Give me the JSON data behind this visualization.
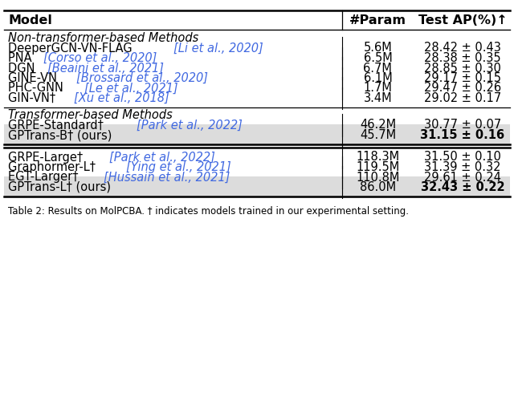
{
  "title_caption": "Table 2: Results on MolPCBA. † indicates models trained in our experimental setting.",
  "section1_title": "Non-transformer-based Methods",
  "section2_title": "Transformer-based Methods",
  "rows": [
    {
      "group": 1,
      "model_plain": "DeeperGCN-VN-FLAG",
      "model_cite": "Li et al., 2020",
      "ours": false,
      "param": "5.6M",
      "ap": "28.42 ± 0.43",
      "bold": false,
      "shaded": false
    },
    {
      "group": 1,
      "model_plain": "PNA",
      "model_cite": "Corso et al., 2020",
      "ours": false,
      "param": "6.5M",
      "ap": "28.38 ± 0.35",
      "bold": false,
      "shaded": false
    },
    {
      "group": 1,
      "model_plain": "DGN",
      "model_cite": "Beaini et al., 2021",
      "ours": false,
      "param": "6.7M",
      "ap": "28.85 ± 0.30",
      "bold": false,
      "shaded": false
    },
    {
      "group": 1,
      "model_plain": "GINE-VN",
      "model_cite": "Brossard et al., 2020",
      "ours": false,
      "param": "6.1M",
      "ap": "29.17 ± 0.15",
      "bold": false,
      "shaded": false
    },
    {
      "group": 1,
      "model_plain": "PHC-GNN",
      "model_cite": "Le et al., 2021",
      "ours": false,
      "param": "1.7M",
      "ap": "29.47 ± 0.26",
      "bold": false,
      "shaded": false
    },
    {
      "group": 1,
      "model_plain": "GIN-VN†",
      "model_cite": "Xu et al., 2018",
      "ours": false,
      "param": "3.4M",
      "ap": "29.02 ± 0.17",
      "bold": false,
      "shaded": false
    },
    {
      "group": 2,
      "model_plain": "GRPE-Standard†",
      "model_cite": "Park et al., 2022",
      "ours": false,
      "param": "46.2M",
      "ap": "30.77 ± 0.07",
      "bold": false,
      "shaded": false
    },
    {
      "group": 2,
      "model_plain": "GPTrans-B† (ours)",
      "model_cite": "",
      "ours": true,
      "param": "45.7M",
      "ap": "31.15 ± 0.16",
      "bold": true,
      "shaded": true
    },
    {
      "group": 3,
      "model_plain": "GRPE-Large†",
      "model_cite": "Park et al., 2022",
      "ours": false,
      "param": "118.3M",
      "ap": "31.50 ± 0.10",
      "bold": false,
      "shaded": false
    },
    {
      "group": 3,
      "model_plain": "Graphormer-L†",
      "model_cite": "Ying et al., 2021",
      "ours": false,
      "param": "119.5M",
      "ap": "31.39 ± 0.32",
      "bold": false,
      "shaded": false
    },
    {
      "group": 3,
      "model_plain": "EGT-Larger†",
      "model_cite": "Hussain et al., 2021",
      "ours": false,
      "param": "110.8M",
      "ap": "29.61 ± 0.24",
      "bold": false,
      "shaded": false
    },
    {
      "group": 3,
      "model_plain": "GPTrans-L† (ours)",
      "model_cite": "",
      "ours": true,
      "param": "86.0M",
      "ap": "32.43 ± 0.22",
      "bold": true,
      "shaded": true
    }
  ],
  "cite_color": "#4169E1",
  "bg_color": "#FFFFFF",
  "shade_color": "#DCDCDC"
}
